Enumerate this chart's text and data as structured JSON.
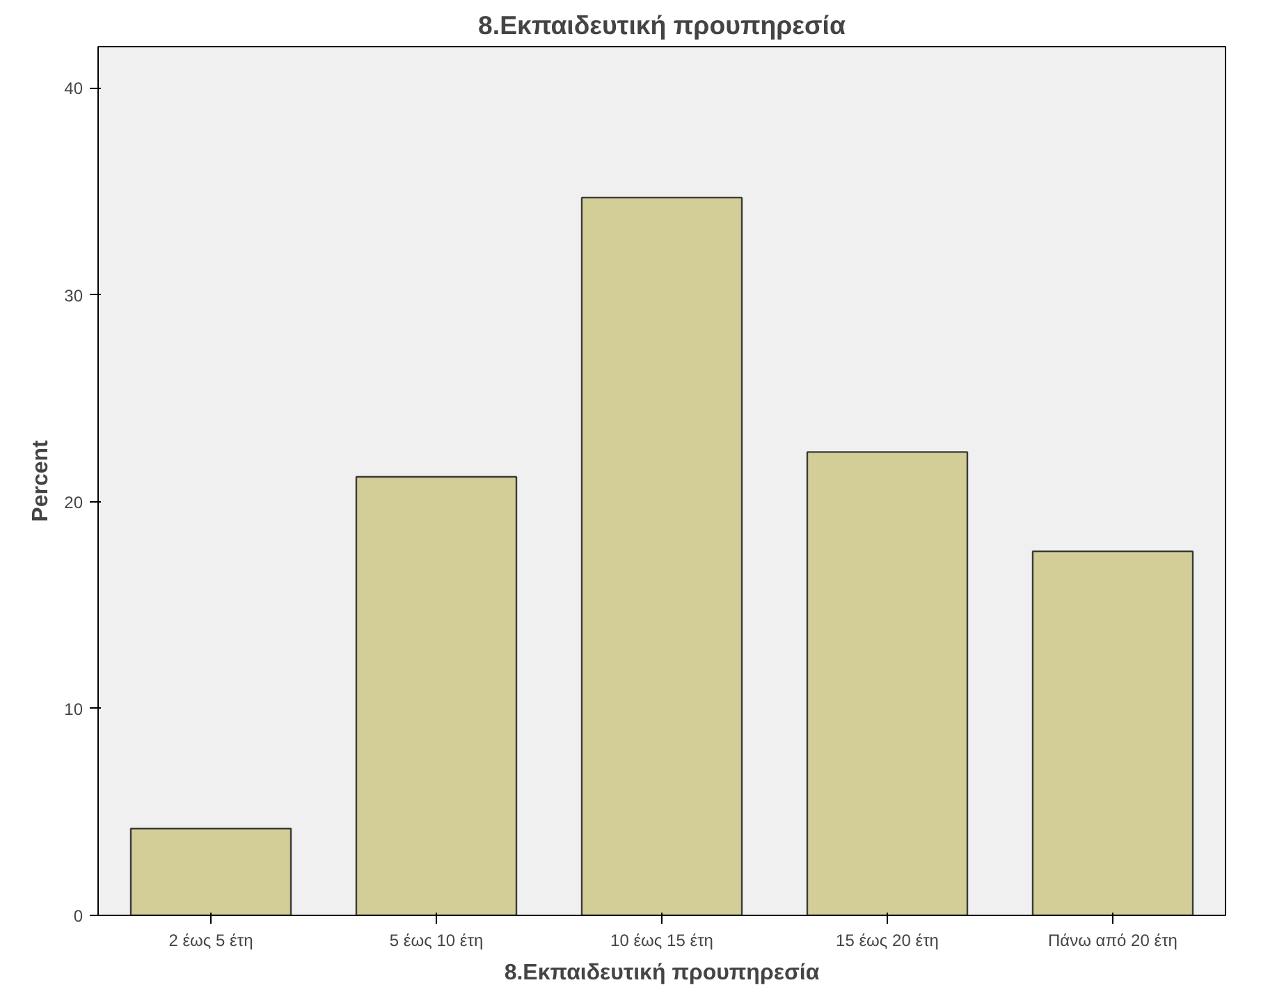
{
  "chart_data": {
    "type": "bar",
    "title": "8.Εκπαιδευτική προυπηρεσία",
    "xlabel": "8.Εκπαιδευτική προυπηρεσία",
    "ylabel": "Percent",
    "categories": [
      "2 έως 5 έτη",
      "5 έως 10 έτη",
      "10 έως 15 έτη",
      "15 έως 20 έτη",
      "Πάνω από 20 έτη"
    ],
    "values": [
      4.2,
      21.2,
      34.7,
      22.4,
      17.6
    ],
    "color": "#d3ce97",
    "ylim": [
      0,
      42
    ],
    "yticks": [
      0,
      10,
      20,
      30,
      40
    ],
    "grid": false
  }
}
